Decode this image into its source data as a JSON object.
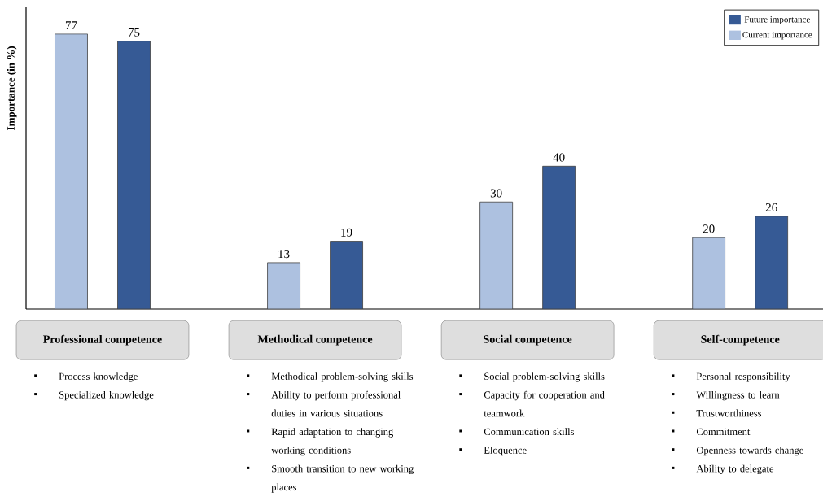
{
  "chart_data": {
    "type": "bar",
    "ylabel": "Importance (in %)",
    "categories": [
      "Professional competence",
      "Methodical competence",
      "Social competence",
      "Self-competence"
    ],
    "series": [
      {
        "name": "Current importance",
        "color": "#adc1e0",
        "values": [
          77,
          13,
          30,
          20
        ]
      },
      {
        "name": "Future importance",
        "color": "#365a95",
        "values": [
          75,
          19,
          40,
          26
        ]
      }
    ],
    "data_labels": true,
    "legend": "top right",
    "tick_labels": "x",
    "annotations": [
      "Process knowledge\nSpecialized knowledge",
      "Methodical problem-solving skills\nAbility to perform professional duties in various situations\nRapid adaptation to changing working conditions\nSmooth transition to new working places",
      "Social problem-solving skills\nCapacity for cooperation and teamwork\nCommunication skills\nEloquence",
      "Personal responsibility\nWillingness to learn\nTrustworthiness\nCommitment\nOpenness towards change\nAbility to delegate"
    ]
  }
}
